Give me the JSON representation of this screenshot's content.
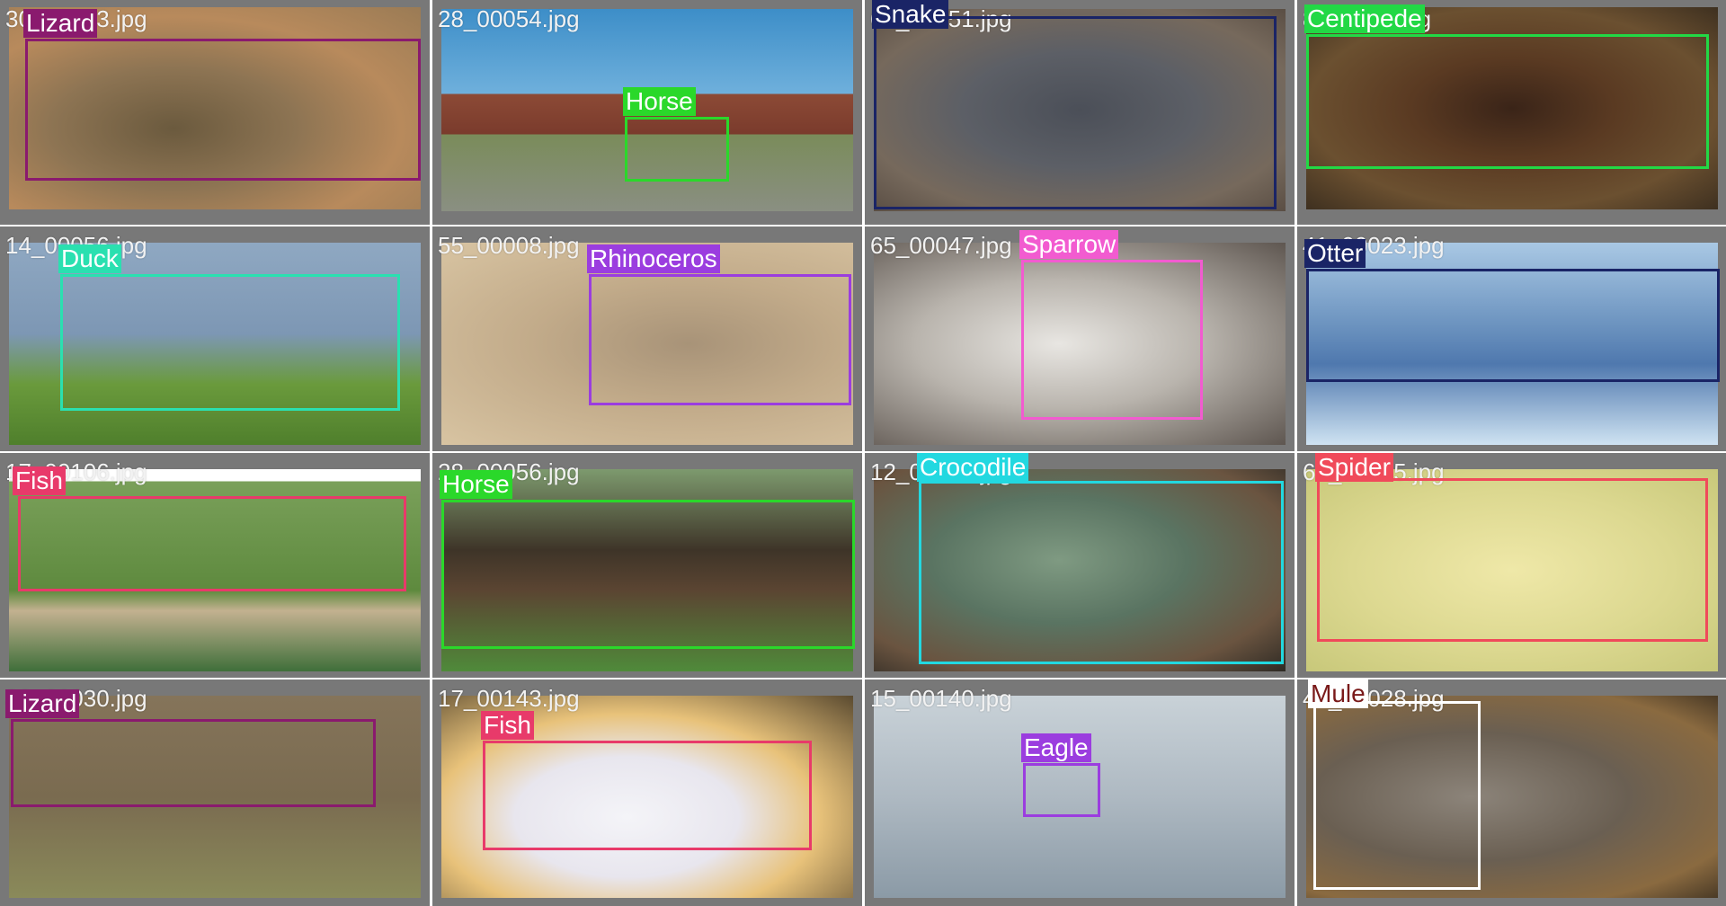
{
  "tiles": [
    {
      "filename": "30_00123.jpg",
      "label": "Lizard",
      "color": "#8a1a6e",
      "photo": "dry brown lizard"
    },
    {
      "filename": "28_00054.jpg",
      "label": "Horse",
      "color": "#2ad82a",
      "photo": "barn horse"
    },
    {
      "filename": "64_00051.jpg",
      "label": "Snake",
      "color": "#1a2466",
      "photo": "grey snake"
    },
    {
      "filename": "8_00069.jpg",
      "label": "Centipede",
      "color": "#22d845",
      "photo": "dark centipede"
    },
    {
      "filename": "14_00056.jpg",
      "label": "Duck",
      "color": "#2ae0b0",
      "photo": "duck on grass"
    },
    {
      "filename": "55_00008.jpg",
      "label": "Rhinoceros",
      "color": "#9b3ddf",
      "photo": "sandy rhino"
    },
    {
      "filename": "65_00047.jpg",
      "label": "Sparrow",
      "color": "#f25bd0",
      "photo": "chickadee"
    },
    {
      "filename": "41_00023.jpg",
      "label": "Otter",
      "color": "#1a2466",
      "photo": "water otter"
    },
    {
      "filename": "17_00106.jpg",
      "label": "Fish",
      "color": "#e83a6a",
      "photo": "fish on grass"
    },
    {
      "filename": "28_00056.jpg",
      "label": "Horse",
      "color": "#2ad82a",
      "photo": "horse race"
    },
    {
      "filename": "12_00031.jpg",
      "label": "Crocodile",
      "color": "#22d8e0",
      "photo": "green crocodile"
    },
    {
      "filename": "63_00035.jpg",
      "label": "Spider",
      "color": "#f04a5a",
      "photo": "spider yellow"
    },
    {
      "filename": "30_00030.jpg",
      "label": "Lizard",
      "color": "#8a1a6e",
      "photo": "sand lizard"
    },
    {
      "filename": "17_00143.jpg",
      "label": "Fish",
      "color": "#e83a6a",
      "photo": "sea slug"
    },
    {
      "filename": "15_00140.jpg",
      "label": "Eagle",
      "color": "#9b3ddf",
      "photo": "eagle water"
    },
    {
      "filename": "41_00028.jpg",
      "label": "Mule",
      "color": "#ffffff",
      "photo": "donkeys"
    }
  ],
  "label_colors": {
    "Mule_text": "#7a1a1a"
  }
}
